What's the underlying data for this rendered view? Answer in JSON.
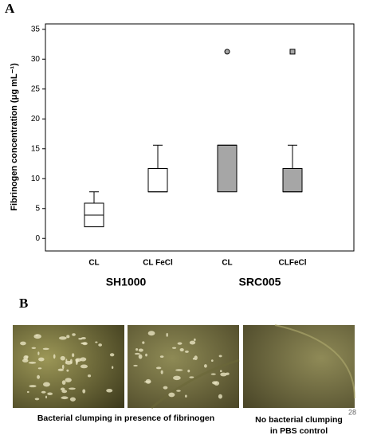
{
  "chart_data": {
    "type": "box",
    "panel_label": "A",
    "ylabel": "Fibrinogen concentration (μg mL⁻¹)",
    "categories": [
      "CL",
      "CL FeCl",
      "CL",
      "CLFeCl"
    ],
    "groups": [
      "SH1000",
      "SRC005"
    ],
    "boxes": [
      {
        "min": 1.95,
        "q1": 1.95,
        "median": 3.9,
        "q3": 5.9,
        "max": 7.8,
        "outliers": [],
        "color": "#ffffff"
      },
      {
        "min": 7.8,
        "q1": 7.8,
        "median": 7.8,
        "q3": 11.7,
        "max": 15.6,
        "outliers": [],
        "color": "#ffffff"
      },
      {
        "min": 7.8,
        "q1": 7.8,
        "median": 15.6,
        "q3": 15.6,
        "max": 15.6,
        "outliers": [
          31.25
        ],
        "outlier_shape": "circle",
        "color": "#a6a6a6"
      },
      {
        "min": 7.8,
        "q1": 7.8,
        "median": 7.8,
        "q3": 11.7,
        "max": 15.6,
        "outliers": [
          31.25
        ],
        "outlier_shape": "square",
        "color": "#a6a6a6"
      }
    ],
    "ylim": [
      -2.1,
      35.9
    ],
    "yticks": [
      0,
      5,
      10,
      15,
      20,
      25,
      30,
      35
    ]
  },
  "panel_b": {
    "label": "B",
    "caption_left": "Bacterial clumping in presence of fibrinogen",
    "caption_right": [
      "No bacterial clumping",
      "in PBS control"
    ],
    "page_number": "28"
  }
}
